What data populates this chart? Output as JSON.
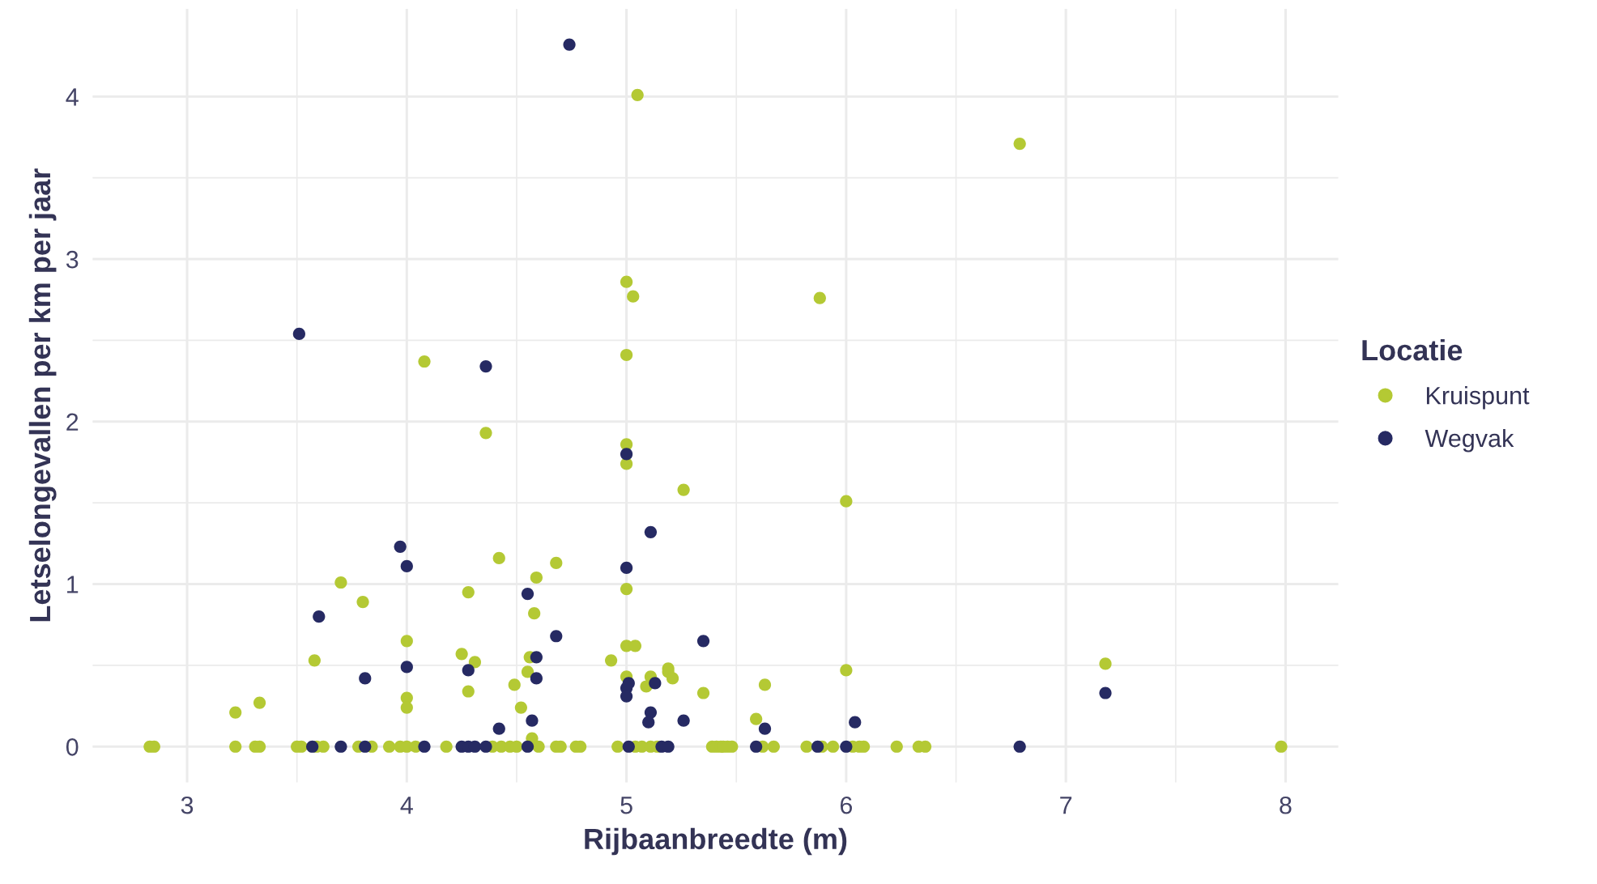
{
  "chart_data": {
    "type": "scatter",
    "xlabel": "Rijbaanbreedte (m)",
    "ylabel": "Letselongevallen per km per jaar",
    "legend_title": "Locatie",
    "legend": "right",
    "grid": true,
    "marker": "circle",
    "xlim": [
      2.57,
      8.24
    ],
    "ylim": [
      -0.22,
      4.54
    ],
    "xticks": [
      3,
      4,
      5,
      6,
      7,
      8
    ],
    "yticks": [
      0,
      1,
      2,
      3,
      4
    ],
    "series": [
      {
        "name": "Kruispunt",
        "color": "#b4c934",
        "x": [
          5.05,
          6.79,
          5.0,
          5.03,
          5.88,
          4.08,
          5.0,
          4.36,
          5.0,
          5.0,
          5.26,
          3.7,
          4.42,
          4.68,
          3.8,
          4.59,
          5.0,
          4.58,
          4.28,
          4.0,
          3.58,
          4.25,
          4.31,
          4.56,
          4.93,
          5.0,
          5.04,
          4.55,
          4.28,
          4.49,
          5.0,
          5.11,
          5.09,
          5.19,
          5.19,
          5.21,
          5.35,
          4.0,
          4.0,
          4.52,
          3.22,
          3.33,
          4.57,
          6.0,
          6.0,
          5.63,
          5.59,
          7.18,
          2.83,
          2.85,
          3.22,
          3.31,
          3.33,
          3.5,
          3.52,
          3.59,
          3.62,
          3.78,
          3.84,
          3.92,
          3.97,
          4.0,
          4.04,
          4.18,
          4.39,
          4.43,
          4.47,
          4.5,
          4.6,
          4.68,
          4.7,
          4.77,
          4.79,
          4.96,
          5.04,
          5.07,
          5.11,
          5.14,
          5.39,
          5.41,
          5.43,
          5.44,
          5.46,
          5.48,
          5.62,
          5.67,
          5.82,
          5.89,
          5.94,
          6.03,
          6.06,
          6.08,
          6.23,
          6.33,
          6.36,
          7.98
        ],
        "values": [
          4.01,
          3.71,
          2.86,
          2.77,
          2.76,
          2.37,
          2.41,
          1.93,
          1.86,
          1.74,
          1.58,
          1.01,
          1.16,
          1.13,
          0.89,
          1.04,
          0.97,
          0.82,
          0.95,
          0.65,
          0.53,
          0.57,
          0.52,
          0.55,
          0.53,
          0.62,
          0.62,
          0.46,
          0.34,
          0.38,
          0.43,
          0.43,
          0.37,
          0.48,
          0.46,
          0.42,
          0.33,
          0.3,
          0.24,
          0.24,
          0.21,
          0.27,
          0.05,
          1.51,
          0.47,
          0.38,
          0.17,
          0.51,
          0,
          0,
          0,
          0,
          0,
          0,
          0,
          0,
          0,
          0,
          0,
          0,
          0,
          0,
          0,
          0,
          0,
          0,
          0,
          0,
          0,
          0,
          0,
          0,
          0,
          0,
          0,
          0,
          0,
          0,
          0,
          0,
          0,
          0,
          0,
          0,
          0,
          0,
          0,
          0,
          0,
          0,
          0,
          0,
          0,
          0,
          0,
          0
        ]
      },
      {
        "name": "Wegvak",
        "color": "#262a63",
        "x": [
          4.74,
          3.51,
          4.36,
          5.0,
          5.11,
          3.97,
          4.0,
          5.0,
          4.55,
          3.6,
          4.68,
          5.35,
          4.28,
          4.59,
          4.0,
          3.81,
          4.59,
          5.01,
          5.0,
          5.0,
          5.13,
          4.42,
          4.57,
          5.11,
          5.1,
          5.26,
          5.63,
          6.04,
          7.18,
          3.57,
          3.7,
          3.81,
          4.08,
          4.25,
          4.28,
          4.31,
          4.36,
          4.55,
          5.01,
          5.16,
          5.19,
          5.59,
          5.87,
          6.0,
          6.79
        ],
        "values": [
          4.32,
          2.54,
          2.34,
          1.8,
          1.32,
          1.23,
          1.11,
          1.1,
          0.94,
          0.8,
          0.68,
          0.65,
          0.47,
          0.55,
          0.49,
          0.42,
          0.42,
          0.39,
          0.36,
          0.31,
          0.39,
          0.11,
          0.16,
          0.21,
          0.15,
          0.16,
          0.11,
          0.15,
          0.33,
          0,
          0,
          0,
          0,
          0,
          0,
          0,
          0,
          0,
          0,
          0,
          0,
          0,
          0,
          0,
          0
        ]
      }
    ]
  }
}
